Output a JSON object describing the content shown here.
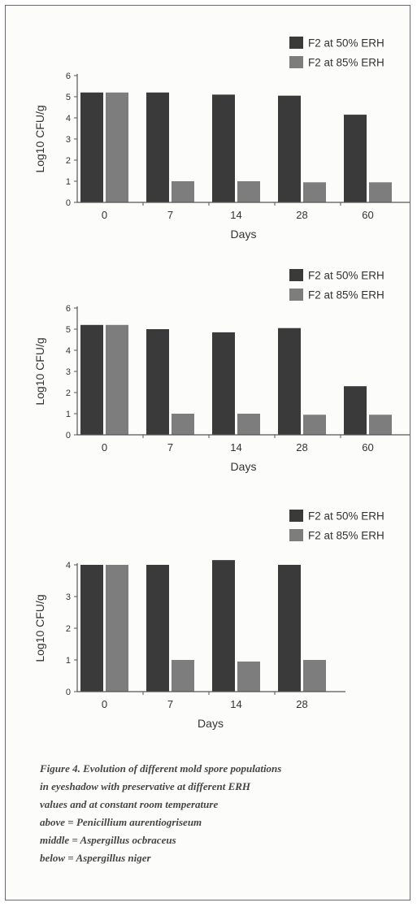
{
  "chart_data": [
    {
      "type": "bar",
      "categories": [
        "0",
        "7",
        "14",
        "28",
        "60"
      ],
      "series": [
        {
          "name": "F2 at 50% ERH",
          "values": [
            5.2,
            5.2,
            5.1,
            5.05,
            4.15
          ]
        },
        {
          "name": "F2 at 85% ERH",
          "values": [
            5.2,
            1.0,
            1.0,
            0.95,
            0.95
          ]
        }
      ],
      "xlabel": "Days",
      "ylabel": "Log10 CFU/g",
      "ylim": [
        0,
        6
      ],
      "yticks": [
        0,
        1,
        2,
        3,
        4,
        5,
        6
      ],
      "legend": "top-right",
      "grid": false
    },
    {
      "type": "bar",
      "categories": [
        "0",
        "7",
        "14",
        "28",
        "60"
      ],
      "series": [
        {
          "name": "F2 at 50% ERH",
          "values": [
            5.2,
            5.0,
            4.85,
            5.05,
            2.3
          ]
        },
        {
          "name": "F2 at 85% ERH",
          "values": [
            5.2,
            1.0,
            1.0,
            0.95,
            0.95
          ]
        }
      ],
      "xlabel": "Days",
      "ylabel": "Log10 CFU/g",
      "ylim": [
        0,
        6
      ],
      "yticks": [
        0,
        1,
        2,
        3,
        4,
        5,
        6
      ],
      "legend": "top-right",
      "grid": false
    },
    {
      "type": "bar",
      "categories": [
        "0",
        "7",
        "14",
        "28"
      ],
      "series": [
        {
          "name": "F2 at 50% ERH",
          "values": [
            4.0,
            4.0,
            4.15,
            4.0
          ]
        },
        {
          "name": "F2 at 85% ERH",
          "values": [
            4.0,
            1.0,
            0.95,
            1.0
          ]
        }
      ],
      "xlabel": "Days",
      "ylabel": "Log10 CFU/g",
      "ylim": [
        0,
        4
      ],
      "yticks": [
        0,
        1,
        2,
        3,
        4
      ],
      "legend": "top-right",
      "grid": false
    }
  ],
  "colors": {
    "series_50": "#3a3a3a",
    "series_85": "#7d7d7d",
    "axis": "#555555",
    "text": "#333333"
  },
  "caption": {
    "lines": [
      "Figure 4. Evolution of different mold spore populations",
      "in eyeshadow with preservative at different ERH",
      "values and at constant room temperature",
      "above = Penicillium aurentiogriseum",
      "middle = Aspergillus ocbraceus",
      "below = Aspergillus niger"
    ]
  }
}
